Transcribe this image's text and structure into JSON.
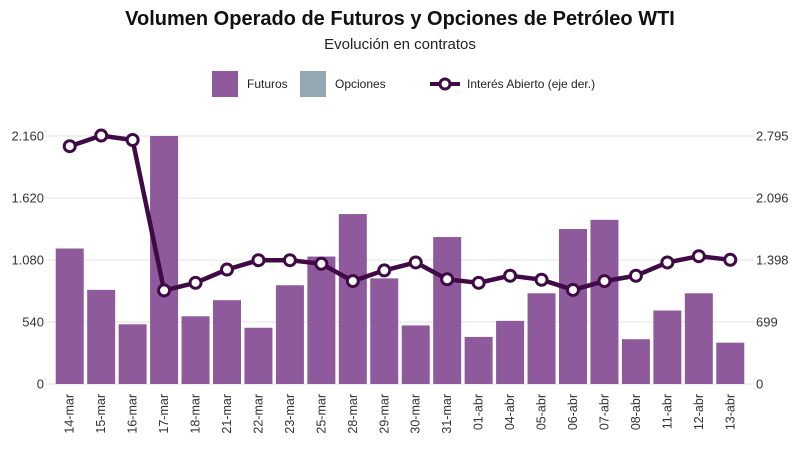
{
  "chart_data": {
    "type": "bar",
    "title": "Volumen Operado de Futuros y Opciones de Petróleo WTI",
    "subtitle": "Evolución en contratos",
    "categories": [
      "14-mar",
      "15-mar",
      "16-mar",
      "17-mar",
      "18-mar",
      "21-mar",
      "22-mar",
      "23-mar",
      "25-mar",
      "28-mar",
      "29-mar",
      "30-mar",
      "31-mar",
      "01-abr",
      "04-abr",
      "05-abr",
      "06-abr",
      "07-abr",
      "08-abr",
      "11-abr",
      "12-abr",
      "13-abr"
    ],
    "series": [
      {
        "name": "Futuros",
        "type": "bar",
        "axis": "left",
        "color": "#8e5a9b",
        "values": [
          1180,
          820,
          520,
          2160,
          590,
          730,
          490,
          860,
          1110,
          1480,
          920,
          510,
          1280,
          410,
          550,
          790,
          1350,
          1430,
          390,
          640,
          790,
          360
        ]
      },
      {
        "name": "Opciones",
        "type": "bar",
        "axis": "left",
        "color": "#93a8b1",
        "values": [
          0,
          0,
          0,
          0,
          0,
          0,
          0,
          0,
          0,
          0,
          0,
          0,
          0,
          0,
          0,
          0,
          0,
          0,
          0,
          0,
          0,
          0
        ]
      },
      {
        "name": "Interés Abierto (eje der.)",
        "type": "line",
        "axis": "right",
        "color": "#3f0a45",
        "values": [
          2680,
          2800,
          2750,
          1055,
          1140,
          1290,
          1395,
          1395,
          1355,
          1160,
          1280,
          1370,
          1180,
          1140,
          1220,
          1175,
          1060,
          1160,
          1220,
          1370,
          1440,
          1400
        ]
      }
    ],
    "y_left": {
      "min": 0,
      "max": 2160,
      "ticks": [
        "0",
        "540",
        "1.080",
        "1.620",
        "2.160"
      ],
      "tick_values": [
        0,
        540,
        1080,
        1620,
        2160
      ]
    },
    "y_right": {
      "min": 0,
      "max": 2795,
      "ticks": [
        "0",
        "699",
        "1.398",
        "2.096",
        "2.795"
      ],
      "tick_values": [
        0,
        699,
        1398,
        2096,
        2795
      ]
    },
    "grid": true,
    "legend_position": "top-center",
    "legend": [
      "Futuros",
      "Opciones",
      "Interés Abierto (eje der.)"
    ]
  }
}
